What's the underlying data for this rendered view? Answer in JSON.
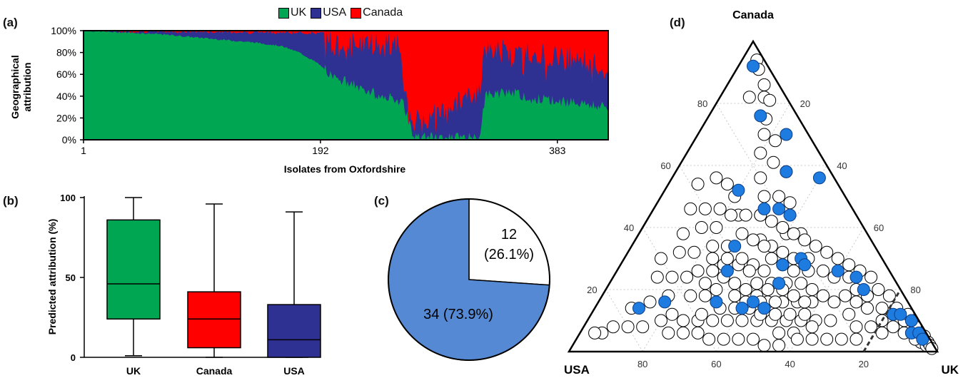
{
  "colors": {
    "UK": "#00a651",
    "USA": "#2e3192",
    "Canada": "#ff0000",
    "blue": "#1e7be0",
    "pie_blue": "#5589d3"
  },
  "panel_letters": {
    "a": "(a)",
    "b": "(b)",
    "c": "(c)",
    "d": "(d)"
  },
  "legend": [
    {
      "label": "UK",
      "key": "UK"
    },
    {
      "label": "USA",
      "key": "USA"
    },
    {
      "label": "Canada",
      "key": "Canada"
    }
  ],
  "chart_data": [
    {
      "type": "area",
      "panel": "a",
      "xlabel": "Isolates from Oxfordshire",
      "ylabel_lines": [
        "Geographical",
        "attribution"
      ],
      "y_ticks": [
        "0%",
        "20%",
        "40%",
        "60%",
        "80%",
        "100%"
      ],
      "x_ticks": [
        "1",
        "192",
        "383"
      ],
      "xlim": [
        1,
        424
      ],
      "ylim": [
        0,
        100
      ],
      "series_order": [
        "UK",
        "USA",
        "Canada"
      ],
      "UK_profile": [
        [
          1,
          100
        ],
        [
          20,
          99
        ],
        [
          40,
          98
        ],
        [
          60,
          97
        ],
        [
          80,
          95
        ],
        [
          100,
          93
        ],
        [
          120,
          91
        ],
        [
          140,
          89
        ],
        [
          160,
          86
        ],
        [
          175,
          80
        ],
        [
          190,
          70
        ],
        [
          200,
          60
        ],
        [
          215,
          52
        ],
        [
          230,
          45
        ],
        [
          240,
          40
        ],
        [
          250,
          38
        ],
        [
          258,
          36
        ],
        [
          263,
          18
        ],
        [
          267,
          2
        ],
        [
          270,
          2
        ],
        [
          280,
          2
        ],
        [
          300,
          2
        ],
        [
          320,
          2
        ],
        [
          325,
          40
        ],
        [
          330,
          42
        ],
        [
          345,
          44
        ],
        [
          360,
          38
        ],
        [
          380,
          36
        ],
        [
          400,
          34
        ],
        [
          415,
          31
        ],
        [
          424,
          30
        ]
      ],
      "USA_top_profile": [
        [
          1,
          100
        ],
        [
          100,
          99
        ],
        [
          180,
          98
        ],
        [
          200,
          97
        ],
        [
          203,
          88
        ],
        [
          215,
          89
        ],
        [
          230,
          88
        ],
        [
          250,
          87
        ],
        [
          256,
          88
        ],
        [
          263,
          20
        ],
        [
          270,
          18
        ],
        [
          280,
          22
        ],
        [
          290,
          26
        ],
        [
          300,
          32
        ],
        [
          315,
          42
        ],
        [
          320,
          42
        ],
        [
          323,
          75
        ],
        [
          330,
          85
        ],
        [
          340,
          82
        ],
        [
          360,
          80
        ],
        [
          380,
          78
        ],
        [
          400,
          75
        ],
        [
          415,
          68
        ],
        [
          424,
          62
        ]
      ]
    },
    {
      "type": "box",
      "panel": "b",
      "ylabel": "Predicted attribution (%)",
      "ylim": [
        0,
        100
      ],
      "y_ticks": [
        "0",
        "50",
        "100"
      ],
      "categories": [
        "UK",
        "Canada",
        "USA"
      ],
      "boxes": [
        {
          "name": "UK",
          "min": 1,
          "q1": 24,
          "median": 46,
          "q3": 86,
          "max": 100
        },
        {
          "name": "Canada",
          "min": 0,
          "q1": 6,
          "median": 24,
          "q3": 41,
          "max": 96
        },
        {
          "name": "USA",
          "min": 0,
          "q1": 0,
          "median": 11,
          "q3": 33,
          "max": 91
        }
      ]
    },
    {
      "type": "pie",
      "panel": "c",
      "slices": [
        {
          "label_line1": "12",
          "label_line2": "(26.1%)",
          "value": 12,
          "percent": 26.1,
          "color": "#ffffff"
        },
        {
          "label_line1": "34 (73.9%)",
          "label_line2": "",
          "value": 34,
          "percent": 73.9,
          "color": "#5589d3"
        }
      ]
    },
    {
      "type": "scatter",
      "panel": "d",
      "coordinate_system": "ternary",
      "corner_labels": {
        "top": "Canada",
        "left": "USA",
        "right": "UK"
      },
      "tick_labels": [
        "20",
        "40",
        "60",
        "80"
      ],
      "axis_note": "components are percentages (UK, USA, Canada) summing to 100",
      "white_points": [
        [
          4,
          2,
          94
        ],
        [
          6,
          3,
          91
        ],
        [
          10,
          4,
          86
        ],
        [
          12,
          6,
          82
        ],
        [
          14,
          5,
          81
        ],
        [
          8,
          10,
          82
        ],
        [
          16,
          9,
          75
        ],
        [
          18,
          12,
          70
        ],
        [
          22,
          10,
          68
        ],
        [
          20,
          16,
          64
        ],
        [
          25,
          14,
          61
        ],
        [
          30,
          12,
          58
        ],
        [
          24,
          20,
          56
        ],
        [
          28,
          22,
          50
        ],
        [
          32,
          18,
          50
        ],
        [
          36,
          16,
          48
        ],
        [
          30,
          26,
          44
        ],
        [
          34,
          30,
          36
        ],
        [
          40,
          22,
          38
        ],
        [
          44,
          18,
          38
        ],
        [
          38,
          28,
          34
        ],
        [
          42,
          26,
          32
        ],
        [
          46,
          24,
          30
        ],
        [
          50,
          20,
          30
        ],
        [
          36,
          36,
          28
        ],
        [
          40,
          34,
          26
        ],
        [
          48,
          30,
          22
        ],
        [
          44,
          34,
          22
        ],
        [
          52,
          26,
          22
        ],
        [
          56,
          24,
          20
        ],
        [
          32,
          40,
          28
        ],
        [
          28,
          44,
          28
        ],
        [
          26,
          48,
          26
        ],
        [
          22,
          52,
          26
        ],
        [
          30,
          46,
          24
        ],
        [
          34,
          44,
          22
        ],
        [
          38,
          42,
          20
        ],
        [
          42,
          40,
          18
        ],
        [
          46,
          38,
          16
        ],
        [
          50,
          34,
          16
        ],
        [
          54,
          30,
          16
        ],
        [
          58,
          26,
          16
        ],
        [
          60,
          22,
          18
        ],
        [
          64,
          20,
          16
        ],
        [
          66,
          16,
          18
        ],
        [
          70,
          14,
          16
        ],
        [
          72,
          10,
          18
        ],
        [
          74,
          12,
          14
        ],
        [
          78,
          8,
          14
        ],
        [
          80,
          10,
          10
        ],
        [
          82,
          6,
          12
        ],
        [
          84,
          8,
          8
        ],
        [
          86,
          4,
          10
        ],
        [
          88,
          6,
          6
        ],
        [
          90,
          4,
          6
        ],
        [
          92,
          2,
          6
        ],
        [
          94,
          3,
          3
        ],
        [
          96,
          2,
          2
        ],
        [
          62,
          28,
          10
        ],
        [
          58,
          32,
          10
        ],
        [
          54,
          36,
          10
        ],
        [
          50,
          40,
          10
        ],
        [
          46,
          44,
          10
        ],
        [
          42,
          48,
          10
        ],
        [
          38,
          52,
          10
        ],
        [
          34,
          56,
          10
        ],
        [
          30,
          60,
          10
        ],
        [
          26,
          64,
          10
        ],
        [
          20,
          70,
          10
        ],
        [
          16,
          76,
          8
        ],
        [
          12,
          80,
          8
        ],
        [
          8,
          84,
          8
        ],
        [
          6,
          88,
          6
        ],
        [
          4,
          90,
          6
        ],
        [
          10,
          76,
          14
        ],
        [
          14,
          70,
          16
        ],
        [
          18,
          64,
          18
        ],
        [
          24,
          58,
          18
        ],
        [
          28,
          54,
          18
        ],
        [
          20,
          56,
          24
        ],
        [
          16,
          60,
          24
        ],
        [
          12,
          64,
          24
        ],
        [
          10,
          60,
          30
        ],
        [
          14,
          54,
          32
        ],
        [
          18,
          50,
          32
        ],
        [
          22,
          44,
          34
        ],
        [
          26,
          40,
          34
        ],
        [
          12,
          50,
          38
        ],
        [
          16,
          44,
          40
        ],
        [
          20,
          40,
          40
        ],
        [
          10,
          44,
          46
        ],
        [
          14,
          40,
          46
        ],
        [
          8,
          38,
          54
        ],
        [
          12,
          32,
          56
        ],
        [
          16,
          30,
          54
        ],
        [
          20,
          30,
          50
        ],
        [
          24,
          32,
          44
        ],
        [
          28,
          34,
          38
        ],
        [
          32,
          32,
          36
        ],
        [
          36,
          30,
          34
        ],
        [
          40,
          30,
          30
        ],
        [
          44,
          28,
          28
        ],
        [
          48,
          26,
          26
        ],
        [
          52,
          22,
          26
        ],
        [
          56,
          18,
          26
        ],
        [
          60,
          16,
          24
        ],
        [
          64,
          12,
          24
        ],
        [
          68,
          12,
          20
        ],
        [
          70,
          18,
          12
        ],
        [
          66,
          24,
          10
        ],
        [
          62,
          30,
          8
        ],
        [
          58,
          36,
          6
        ],
        [
          54,
          40,
          6
        ],
        [
          74,
          18,
          8
        ],
        [
          78,
          14,
          8
        ],
        [
          82,
          12,
          6
        ],
        [
          76,
          20,
          4
        ],
        [
          72,
          24,
          4
        ],
        [
          68,
          28,
          4
        ],
        [
          64,
          32,
          4
        ],
        [
          60,
          36,
          4
        ],
        [
          56,
          42,
          2
        ],
        [
          52,
          46,
          2
        ],
        [
          48,
          48,
          4
        ],
        [
          44,
          52,
          4
        ],
        [
          40,
          56,
          4
        ],
        [
          36,
          60,
          4
        ],
        [
          32,
          62,
          6
        ],
        [
          28,
          66,
          6
        ],
        [
          24,
          70,
          6
        ],
        [
          22,
          66,
          12
        ],
        [
          30,
          58,
          12
        ],
        [
          34,
          52,
          14
        ],
        [
          38,
          48,
          14
        ],
        [
          42,
          44,
          14
        ],
        [
          46,
          42,
          12
        ],
        [
          50,
          38,
          12
        ],
        [
          54,
          34,
          12
        ],
        [
          58,
          30,
          12
        ],
        [
          36,
          46,
          18
        ],
        [
          40,
          44,
          16
        ],
        [
          44,
          40,
          16
        ],
        [
          48,
          36,
          16
        ],
        [
          30,
          50,
          20
        ],
        [
          26,
          52,
          22
        ],
        [
          24,
          46,
          30
        ],
        [
          28,
          42,
          30
        ],
        [
          32,
          38,
          30
        ],
        [
          36,
          38,
          26
        ],
        [
          40,
          38,
          22
        ],
        [
          44,
          36,
          20
        ],
        [
          48,
          32,
          20
        ],
        [
          52,
          30,
          18
        ],
        [
          56,
          28,
          16
        ],
        [
          18,
          36,
          46
        ],
        [
          22,
          34,
          44
        ],
        [
          26,
          30,
          44
        ],
        [
          30,
          26,
          44
        ],
        [
          34,
          24,
          42
        ],
        [
          38,
          22,
          40
        ],
        [
          42,
          20,
          38
        ],
        [
          46,
          18,
          36
        ],
        [
          50,
          16,
          34
        ],
        [
          54,
          14,
          32
        ],
        [
          58,
          12,
          30
        ],
        [
          62,
          10,
          28
        ],
        [
          66,
          8,
          26
        ],
        [
          70,
          6,
          24
        ],
        [
          74,
          6,
          20
        ],
        [
          78,
          4,
          18
        ],
        [
          82,
          4,
          14
        ],
        [
          86,
          2,
          12
        ],
        [
          88,
          2,
          10
        ],
        [
          90,
          2,
          8
        ],
        [
          92,
          4,
          4
        ],
        [
          94,
          1,
          5
        ],
        [
          96,
          1,
          3
        ],
        [
          97,
          1,
          2
        ],
        [
          98,
          1,
          1
        ]
      ],
      "blue_points": [
        [
          4,
          4,
          92
        ],
        [
          14,
          10,
          76
        ],
        [
          30,
          12,
          58
        ],
        [
          24,
          6,
          70
        ],
        [
          40,
          4,
          56
        ],
        [
          20,
          28,
          52
        ],
        [
          34,
          20,
          46
        ],
        [
          38,
          18,
          44
        ],
        [
          28,
          38,
          34
        ],
        [
          30,
          24,
          46
        ],
        [
          44,
          28,
          28
        ],
        [
          48,
          22,
          30
        ],
        [
          40,
          46,
          14
        ],
        [
          46,
          40,
          14
        ],
        [
          42,
          42,
          16
        ],
        [
          30,
          44,
          26
        ],
        [
          32,
          52,
          16
        ],
        [
          18,
          66,
          16
        ],
        [
          12,
          74,
          14
        ],
        [
          46,
          32,
          22
        ],
        [
          50,
          22,
          28
        ],
        [
          60,
          14,
          26
        ],
        [
          66,
          10,
          24
        ],
        [
          70,
          10,
          20
        ],
        [
          82,
          6,
          12
        ],
        [
          84,
          4,
          12
        ],
        [
          88,
          2,
          10
        ],
        [
          90,
          4,
          6
        ],
        [
          92,
          2,
          6
        ],
        [
          94,
          2,
          4
        ]
      ]
    }
  ]
}
